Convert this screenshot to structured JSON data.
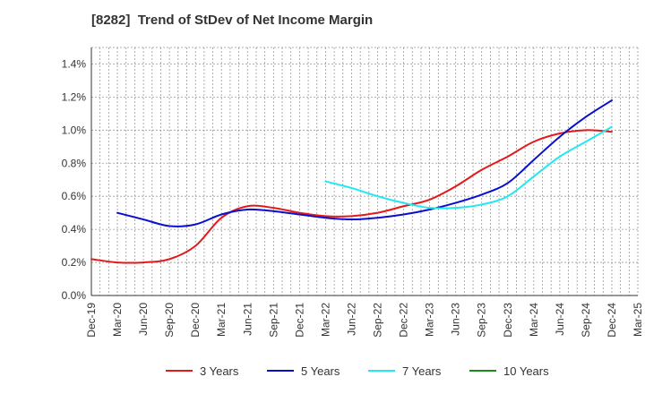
{
  "chart_data": {
    "type": "line",
    "title": "[8282]  Trend of StDev of Net Income Margin",
    "x_ticks": [
      "Dec-19",
      "Mar-20",
      "Jun-20",
      "Sep-20",
      "Dec-20",
      "Mar-21",
      "Jun-21",
      "Sep-21",
      "Dec-21",
      "Mar-22",
      "Jun-22",
      "Sep-22",
      "Dec-22",
      "Mar-23",
      "Jun-23",
      "Sep-23",
      "Dec-23",
      "Mar-24",
      "Jun-24",
      "Sep-24",
      "Dec-24",
      "Mar-25"
    ],
    "y_ticks": [
      "0.0%",
      "0.2%",
      "0.4%",
      "0.6%",
      "0.8%",
      "1.0%",
      "1.2%",
      "1.4%"
    ],
    "ylim": [
      0,
      1.5
    ],
    "y_unit": "%",
    "grid": true,
    "legend_position": "bottom",
    "series": [
      {
        "name": "3 Years",
        "color": "#e31a1c",
        "x": [
          "Dec-19",
          "Mar-20",
          "Jun-20",
          "Sep-20",
          "Dec-20",
          "Mar-21",
          "Jun-21",
          "Sep-21",
          "Dec-21",
          "Mar-22",
          "Jun-22",
          "Sep-22",
          "Dec-22",
          "Mar-23",
          "Jun-23",
          "Sep-23",
          "Dec-23",
          "Mar-24",
          "Jun-24",
          "Sep-24",
          "Dec-24"
        ],
        "values": [
          0.22,
          0.2,
          0.2,
          0.22,
          0.3,
          0.47,
          0.54,
          0.53,
          0.5,
          0.48,
          0.48,
          0.5,
          0.54,
          0.58,
          0.66,
          0.76,
          0.84,
          0.93,
          0.98,
          1.0,
          0.99
        ]
      },
      {
        "name": "5 Years",
        "color": "#0a0fcc",
        "x": [
          "Mar-20",
          "Jun-20",
          "Sep-20",
          "Dec-20",
          "Mar-21",
          "Jun-21",
          "Sep-21",
          "Dec-21",
          "Mar-22",
          "Jun-22",
          "Sep-22",
          "Dec-22",
          "Mar-23",
          "Jun-23",
          "Sep-23",
          "Dec-23",
          "Mar-24",
          "Jun-24",
          "Sep-24",
          "Dec-24"
        ],
        "values": [
          0.5,
          0.46,
          0.42,
          0.43,
          0.49,
          0.52,
          0.51,
          0.49,
          0.47,
          0.46,
          0.47,
          0.49,
          0.52,
          0.56,
          0.61,
          0.68,
          0.82,
          0.96,
          1.08,
          1.18
        ]
      },
      {
        "name": "7 Years",
        "color": "#22e8f0",
        "x": [
          "Mar-22",
          "Jun-22",
          "Sep-22",
          "Dec-22",
          "Mar-23",
          "Jun-23",
          "Sep-23",
          "Dec-23",
          "Mar-24",
          "Jun-24",
          "Sep-24",
          "Dec-24"
        ],
        "values": [
          0.69,
          0.65,
          0.6,
          0.56,
          0.53,
          0.53,
          0.55,
          0.6,
          0.72,
          0.84,
          0.93,
          1.02
        ]
      },
      {
        "name": "10 Years",
        "color": "#1a8a1a",
        "x": [],
        "values": []
      }
    ]
  }
}
